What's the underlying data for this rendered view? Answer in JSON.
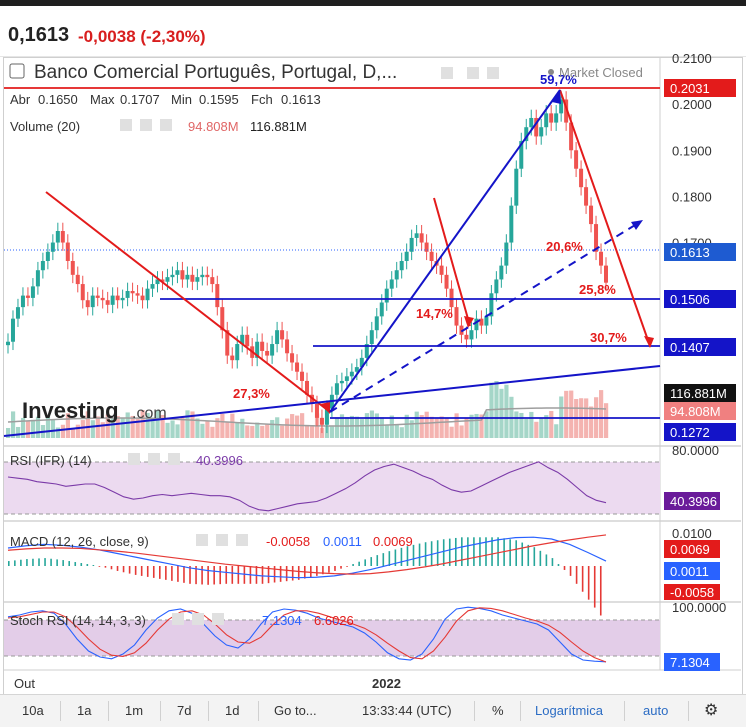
{
  "quote": {
    "last": "0,1613",
    "change": "-0,0038 (-2,30%)"
  },
  "legend": {
    "title": "Banco Comercial Português, Portugal, D,...",
    "status": "Market Closed",
    "ohlc": [
      {
        "label": "Abr",
        "value": "0.1650"
      },
      {
        "label": "Max",
        "value": "0.1707"
      },
      {
        "label": "Min",
        "value": "0.1595"
      },
      {
        "label": "Fch",
        "value": "0.1613"
      }
    ],
    "volume_label": "Volume (20)",
    "volume_avg": "94.808M",
    "volume_last": "116.881M",
    "watermark": "Investing",
    "watermark_suffix": ".com"
  },
  "indicators": {
    "rsi": {
      "label": "RSI (IFR) (14)",
      "value": "40.3996",
      "tick_top": "80.0000",
      "badge": "40.3996"
    },
    "macd": {
      "label": "MACD (12, 26, close, 9)",
      "hist": "-0.0058",
      "macd": "0.0011",
      "signal": "0.0069",
      "tick_top": "0.0100",
      "badge_signal": "0.0069",
      "badge_macd": "0.0011",
      "badge_hist": "-0.0058"
    },
    "stoch": {
      "label": "Stoch RSI (14, 14, 3, 3)",
      "k": "7.1304",
      "d": "6.6026",
      "tick_top": "100.0000",
      "badge": "7.1304"
    }
  },
  "price_axis": {
    "ticks": [
      "0.2100",
      "0.2000",
      "0.1900",
      "0.1800",
      "0.1700"
    ],
    "badges": [
      {
        "label": "0.2031",
        "color": "#e31b1b"
      },
      {
        "label": "0.1613",
        "color": "#1e5bd1"
      },
      {
        "label": "0.1506",
        "color": "#1414c8"
      },
      {
        "label": "0.1407",
        "color": "#1414c8"
      },
      {
        "label": "116.881M",
        "color": "#111111"
      },
      {
        "label": "94.808M",
        "color": "#f08080"
      },
      {
        "label": "0.1272",
        "color": "#1414c8"
      }
    ]
  },
  "annotations": [
    {
      "text": "59,7%",
      "color": "#1414c8"
    },
    {
      "text": "20,6%",
      "color": "#e31b1b"
    },
    {
      "text": "25,8%",
      "color": "#e31b1b"
    },
    {
      "text": "14,7%",
      "color": "#e31b1b"
    },
    {
      "text": "30,7%",
      "color": "#e31b1b"
    },
    {
      "text": "27,3%",
      "color": "#e31b1b"
    }
  ],
  "x_axis": [
    "Out",
    "2022"
  ],
  "toolbar": {
    "ranges": [
      "10a",
      "1a",
      "1m",
      "7d",
      "1d"
    ],
    "goto": "Go to...",
    "time": "13:33:44 (UTC)",
    "percent": "%",
    "log": "Logarítmica",
    "auto": "auto"
  },
  "colors": {
    "up": "#26a69a",
    "down": "#ef5350",
    "trend_red": "#e31b1b",
    "trend_blue": "#1414c8"
  },
  "chart_data": {
    "type": "candlestick",
    "y_range": [
      0.1272,
      0.21
    ],
    "closes": [
      0.1485,
      0.1535,
      0.156,
      0.1585,
      0.158,
      0.1605,
      0.164,
      0.166,
      0.168,
      0.17,
      0.1725,
      0.17,
      0.166,
      0.163,
      0.161,
      0.1575,
      0.156,
      0.1585,
      0.158,
      0.1575,
      0.1565,
      0.1585,
      0.1575,
      0.158,
      0.1595,
      0.159,
      0.1585,
      0.1575,
      0.16,
      0.161,
      0.162,
      0.1615,
      0.1625,
      0.163,
      0.164,
      0.162,
      0.163,
      0.1615,
      0.1625,
      0.163,
      0.1625,
      0.161,
      0.156,
      0.151,
      0.1455,
      0.1445,
      0.148,
      0.15,
      0.1475,
      0.145,
      0.1485,
      0.1465,
      0.1455,
      0.148,
      0.151,
      0.149,
      0.146,
      0.144,
      0.142,
      0.14,
      0.137,
      0.135,
      0.132,
      0.1305,
      0.134,
      0.137,
      0.1395,
      0.14,
      0.141,
      0.142,
      0.143,
      0.145,
      0.148,
      0.151,
      0.154,
      0.157,
      0.16,
      0.162,
      0.164,
      0.166,
      0.168,
      0.171,
      0.172,
      0.17,
      0.168,
      0.166,
      0.165,
      0.163,
      0.16,
      0.156,
      0.152,
      0.15,
      0.149,
      0.151,
      0.1535,
      0.152,
      0.154,
      0.159,
      0.162,
      0.165,
      0.17,
      0.178,
      0.186,
      0.192,
      0.195,
      0.197,
      0.193,
      0.195,
      0.198,
      0.196,
      0.198,
      0.201,
      0.196,
      0.19,
      0.186,
      0.182,
      0.178,
      0.174,
      0.168,
      0.165,
      0.1613
    ],
    "rsi": [
      62,
      61,
      60,
      58,
      57,
      56,
      54,
      55,
      56,
      56,
      53,
      49,
      45,
      43,
      44,
      46,
      47,
      46,
      47,
      48,
      47,
      46,
      46,
      45,
      42,
      37,
      34,
      33,
      35,
      37,
      39,
      40,
      41,
      44,
      48,
      52,
      57,
      63,
      68,
      71,
      73,
      70,
      67,
      63,
      60,
      55,
      51,
      49,
      50,
      54,
      58,
      62,
      66,
      69,
      72,
      75,
      70,
      66,
      60,
      53,
      46,
      42,
      40
    ],
    "macd": [
      0.004,
      0.0045,
      0.0048,
      0.0046,
      0.0042,
      0.0036,
      0.0028,
      0.002,
      0.0012,
      0.0004,
      -0.0004,
      -0.001,
      -0.0014,
      -0.0018,
      -0.0022,
      -0.0024,
      -0.0026,
      -0.0025,
      -0.0022,
      -0.0016,
      -0.0008,
      0.0002,
      0.0012,
      0.0022,
      0.0032,
      0.0042,
      0.005,
      0.0058,
      0.0063,
      0.0064,
      0.006,
      0.0048,
      0.003,
      0.0011
    ],
    "signal": [
      0.0035,
      0.0038,
      0.004,
      0.004,
      0.0039,
      0.0036,
      0.0033,
      0.0029,
      0.0024,
      0.0019,
      0.0014,
      0.0009,
      0.0004,
      0.0,
      -0.0004,
      -0.0008,
      -0.0012,
      -0.0015,
      -0.0017,
      -0.0018,
      -0.0017,
      -0.0013,
      -0.0008,
      -0.0002,
      0.0005,
      0.0013,
      0.0021,
      0.0029,
      0.0037,
      0.0045,
      0.0052,
      0.0058,
      0.0064,
      0.0069
    ],
    "stoch_k": [
      82,
      85,
      90,
      92,
      88,
      70,
      45,
      25,
      15,
      12,
      20,
      35,
      60,
      80,
      92,
      95,
      88,
      70,
      50,
      35,
      30,
      45,
      70,
      90,
      95,
      93,
      88,
      80,
      75,
      70,
      65,
      55,
      40,
      22,
      12,
      10,
      20,
      45,
      78,
      95,
      98,
      96,
      92,
      85,
      80,
      75,
      70,
      60,
      40,
      20,
      10,
      8,
      7
    ],
    "stoch_d": [
      80,
      82,
      86,
      90,
      90,
      82,
      65,
      45,
      28,
      18,
      16,
      22,
      38,
      60,
      78,
      90,
      92,
      85,
      70,
      52,
      40,
      38,
      48,
      68,
      85,
      92,
      92,
      88,
      82,
      76,
      70,
      63,
      52,
      38,
      25,
      14,
      12,
      25,
      48,
      75,
      92,
      97,
      96,
      92,
      86,
      80,
      75,
      68,
      56,
      40,
      25,
      14,
      6.6
    ]
  }
}
